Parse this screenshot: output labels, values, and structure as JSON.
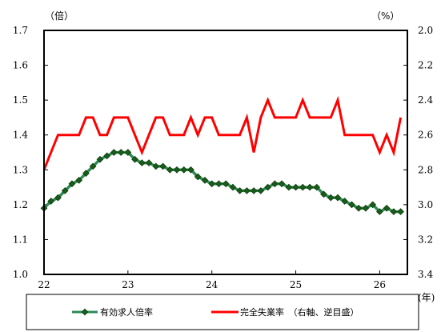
{
  "chart_data": {
    "type": "line",
    "left_axis": {
      "unit_label": "（倍）",
      "range": [
        1.0,
        1.7
      ],
      "ticks": [
        "1.0",
        "1.1",
        "1.2",
        "1.3",
        "1.4",
        "1.5",
        "1.6",
        "1.7"
      ]
    },
    "right_axis": {
      "unit_label": "（%）",
      "range": [
        3.4,
        2.0
      ],
      "inverted": true,
      "ticks": [
        "2.0",
        "2.2",
        "2.4",
        "2.6",
        "2.8",
        "3.0",
        "3.2",
        "3.4"
      ]
    },
    "x_axis": {
      "unit_label": "(年)",
      "range": [
        22,
        26.33
      ],
      "ticks": [
        "22",
        "23",
        "24",
        "25",
        "26"
      ]
    },
    "series": [
      {
        "name": "有効求人倍率",
        "axis": "left",
        "color": "#2e8b57",
        "marker": "diamond",
        "marker_color": "#1a5c1a",
        "x": [
          22.0,
          22.083,
          22.167,
          22.25,
          22.333,
          22.417,
          22.5,
          22.583,
          22.667,
          22.75,
          22.833,
          22.917,
          23.0,
          23.083,
          23.167,
          23.25,
          23.333,
          23.417,
          23.5,
          23.583,
          23.667,
          23.75,
          23.833,
          23.917,
          24.0,
          24.083,
          24.167,
          24.25,
          24.333,
          24.417,
          24.5,
          24.583,
          24.667,
          24.75,
          24.833,
          24.917,
          25.0,
          25.083,
          25.167,
          25.25,
          25.333,
          25.417,
          25.5,
          25.583,
          25.667,
          25.75,
          25.833,
          25.917,
          26.0,
          26.083,
          26.167,
          26.25
        ],
        "values": [
          1.19,
          1.21,
          1.22,
          1.24,
          1.26,
          1.27,
          1.29,
          1.31,
          1.33,
          1.34,
          1.35,
          1.35,
          1.35,
          1.33,
          1.32,
          1.32,
          1.31,
          1.31,
          1.3,
          1.3,
          1.3,
          1.3,
          1.28,
          1.27,
          1.26,
          1.26,
          1.26,
          1.25,
          1.24,
          1.24,
          1.24,
          1.24,
          1.25,
          1.26,
          1.26,
          1.25,
          1.25,
          1.25,
          1.25,
          1.25,
          1.23,
          1.22,
          1.22,
          1.21,
          1.2,
          1.19,
          1.19,
          1.2,
          1.18,
          1.19,
          1.18,
          1.18
        ]
      },
      {
        "name": "完全失業率　（右軸、逆目盛）",
        "axis": "right",
        "color": "#ff0000",
        "marker": "none",
        "x": [
          22.0,
          22.083,
          22.167,
          22.25,
          22.333,
          22.417,
          22.5,
          22.583,
          22.667,
          22.75,
          22.833,
          22.917,
          23.0,
          23.083,
          23.167,
          23.25,
          23.333,
          23.417,
          23.5,
          23.583,
          23.667,
          23.75,
          23.833,
          23.917,
          24.0,
          24.083,
          24.167,
          24.25,
          24.333,
          24.417,
          24.5,
          24.583,
          24.667,
          24.75,
          24.833,
          24.917,
          25.0,
          25.083,
          25.167,
          25.25,
          25.333,
          25.417,
          25.5,
          25.583,
          25.667,
          25.75,
          25.833,
          25.917,
          26.0,
          26.083,
          26.167,
          26.25
        ],
        "values": [
          2.8,
          2.7,
          2.6,
          2.6,
          2.6,
          2.6,
          2.5,
          2.5,
          2.6,
          2.6,
          2.5,
          2.5,
          2.5,
          2.6,
          2.7,
          2.6,
          2.5,
          2.5,
          2.6,
          2.6,
          2.6,
          2.5,
          2.6,
          2.5,
          2.5,
          2.6,
          2.6,
          2.6,
          2.6,
          2.5,
          2.7,
          2.5,
          2.4,
          2.5,
          2.5,
          2.5,
          2.5,
          2.4,
          2.5,
          2.5,
          2.5,
          2.5,
          2.4,
          2.6,
          2.6,
          2.6,
          2.6,
          2.6,
          2.7,
          2.6,
          2.7,
          2.5
        ]
      }
    ],
    "legend": {
      "position": "bottom",
      "entries": [
        "有効求人倍率",
        "完全失業率　（右軸、逆目盛）"
      ]
    },
    "grid": false
  }
}
